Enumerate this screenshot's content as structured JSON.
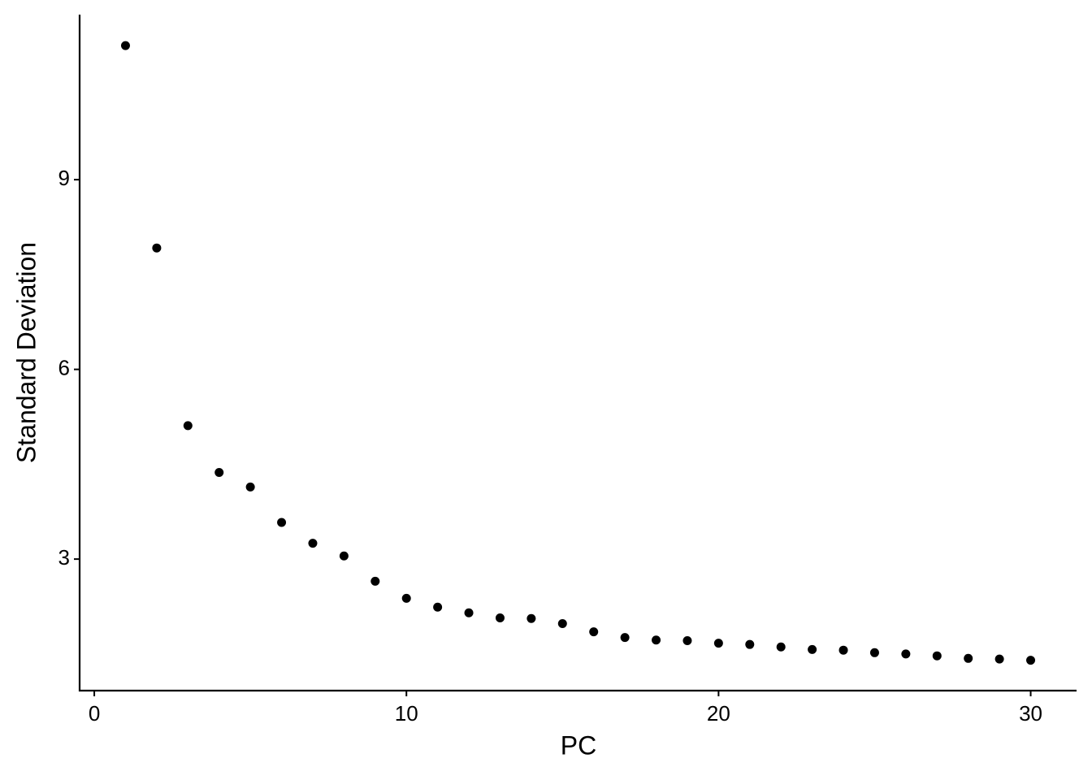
{
  "chart_data": {
    "type": "scatter",
    "x_label": "PC",
    "y_label": "Standard Deviation",
    "x": [
      1,
      2,
      3,
      4,
      5,
      6,
      7,
      8,
      9,
      10,
      11,
      12,
      13,
      14,
      15,
      16,
      17,
      18,
      19,
      20,
      21,
      22,
      23,
      24,
      25,
      26,
      27,
      28,
      29,
      30
    ],
    "values": [
      11.12,
      7.92,
      5.11,
      4.37,
      4.14,
      3.58,
      3.25,
      3.05,
      2.65,
      2.38,
      2.24,
      2.15,
      2.07,
      2.06,
      1.98,
      1.85,
      1.76,
      1.72,
      1.71,
      1.67,
      1.65,
      1.61,
      1.57,
      1.56,
      1.52,
      1.5,
      1.47,
      1.43,
      1.42,
      1.4
    ],
    "color": "#000000",
    "xlim": [
      -0.47,
      31.47
    ],
    "ylim": [
      0.92,
      11.61
    ],
    "xticks": [
      0,
      10,
      20,
      30
    ],
    "yticks": [
      3,
      6,
      9
    ],
    "grid": false
  }
}
